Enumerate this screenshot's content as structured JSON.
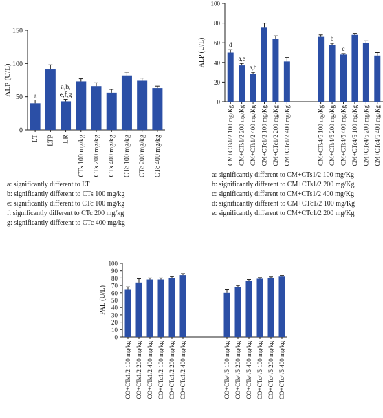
{
  "colors": {
    "bar": "#2b4fa6",
    "axis": "#222222"
  },
  "chart_data": [
    {
      "type": "bar",
      "ylabel": "ALP (U/L)",
      "ylim": [
        0,
        150
      ],
      "yticks": [
        "0",
        "50",
        "100",
        "150"
      ],
      "categories": [
        "LT",
        "LTP",
        "LR",
        "CTs 100 mg/kg",
        "CTs 200 mg/kg",
        "CTs 400 mg/kg",
        "CTc 100 mg/kg",
        "CTc 200 mg/kg",
        "CTc 400 mg/kg"
      ],
      "values": [
        40,
        91,
        43,
        73,
        66,
        56,
        82,
        74,
        63
      ],
      "errors": [
        5,
        7,
        3,
        4,
        5,
        5,
        5,
        4,
        3
      ],
      "bar_labels": [
        [
          "a"
        ],
        [],
        [
          "a,b,",
          "e,f,g"
        ],
        [],
        [],
        [],
        [],
        [],
        []
      ],
      "legend": [
        "a: significantly different to LT",
        "b: significantly different to CTs 100 mg/kg",
        "e: significantly different to CTc 100 mg/kg",
        "f: significantly different to CTc 200 mg/kg",
        "g: significantly different to CTc 400 mg/kg"
      ]
    },
    {
      "type": "bar",
      "ylabel": "ALP (U/L)",
      "ylim": [
        0,
        100
      ],
      "yticks": [
        "0",
        "20",
        "40",
        "60",
        "80",
        "100"
      ],
      "categories": [
        "CM+CTs1/2 100 mg/Kg",
        "CM+CTs1/2 200 mg/Kg",
        "CM+CTs1/2 400 mg/Kg",
        "CM+CTc1/2 100 mg/Kg",
        "CM+CTc1/2 200 mg/Kg",
        "CM+CTc1/2 400 mg/Kg",
        "",
        "",
        "CM+CTs4/5 100 mg/Kg",
        "CM+CTs4/5 200 mg/Kg",
        "CM+CTs4/5 400 mg/Kg",
        "CM+CTc4/5 100 mg/Kg",
        "CM+CTc4/5 200 mg/Kg",
        "CM+CTc4/5 400 mg/Kg"
      ],
      "values": [
        50,
        37,
        28,
        76,
        64,
        41,
        null,
        null,
        66,
        58,
        48,
        68,
        60,
        47
      ],
      "errors": [
        3,
        2,
        2,
        4,
        3,
        4,
        null,
        null,
        2,
        1.5,
        1,
        1.5,
        2,
        3
      ],
      "bar_labels": [
        [
          "d"
        ],
        [
          "a,e"
        ],
        [
          "a,b"
        ],
        [],
        [],
        [],
        [],
        [],
        [],
        [
          "b"
        ],
        [
          "c"
        ],
        [],
        [],
        []
      ],
      "legend": [
        "a: significantly different to CM+CTs1/2 100 mg/Kg",
        "b: significantly different to CM+CTs1/2 200 mg/Kg",
        "c: significantly different to CM+CTs1/2 400 mg/Kg",
        "d: significantly different to CM+CTc1/2 100 mg/Kg",
        "e: significantly different to CM+CTc1/2 200 mg/Kg"
      ]
    },
    {
      "type": "bar",
      "ylabel": "PAL (U/L)",
      "ylim": [
        0,
        100
      ],
      "yticks": [
        "0",
        "10",
        "20",
        "30",
        "40",
        "50",
        "60",
        "70",
        "80",
        "90",
        "100"
      ],
      "categories": [
        "CO+CTs1/2 100 mg/kg",
        "CO+CTs1/2 200 mg/kg",
        "CO+CTs1/2 400 mg/kg",
        "CO+CTc1/2 100 mg/kg",
        "CO+CTc1/2 200 mg/kg",
        "CO+CTc1/2 400 mg/kg",
        "",
        "",
        "",
        "CO+CTs4/5 100 mg/kg",
        "CO+CTs4/5 200 mg/kg",
        "CO+CTs4/5 400 mg/kg",
        "CO+CTc4/5 100 mg/kg",
        "CO+CTc4/5 200 mg/kg",
        "CO+CTc4/5 400 mg/kg"
      ],
      "values": [
        64,
        74,
        78,
        78,
        80,
        84,
        null,
        null,
        null,
        60,
        68,
        76,
        79,
        80,
        82
      ],
      "errors": [
        4,
        5,
        2,
        2,
        2,
        2,
        null,
        null,
        null,
        4,
        2,
        2,
        1.5,
        1.5,
        1.5
      ],
      "bar_labels": [],
      "legend": []
    }
  ]
}
